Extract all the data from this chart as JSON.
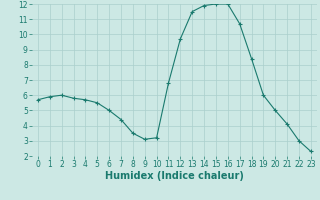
{
  "x": [
    0,
    1,
    2,
    3,
    4,
    5,
    6,
    7,
    8,
    9,
    10,
    11,
    12,
    13,
    14,
    15,
    16,
    17,
    18,
    19,
    20,
    21,
    22,
    23
  ],
  "y": [
    5.7,
    5.9,
    6.0,
    5.8,
    5.7,
    5.5,
    5.0,
    4.4,
    3.5,
    3.1,
    3.2,
    6.8,
    9.7,
    11.5,
    11.9,
    12.0,
    12.0,
    10.7,
    8.4,
    6.0,
    5.0,
    4.1,
    3.0,
    2.3
  ],
  "xlabel": "Humidex (Indice chaleur)",
  "ylim": [
    2,
    12
  ],
  "xlim_min": -0.5,
  "xlim_max": 23.5,
  "yticks": [
    2,
    3,
    4,
    5,
    6,
    7,
    8,
    9,
    10,
    11,
    12
  ],
  "xticks": [
    0,
    1,
    2,
    3,
    4,
    5,
    6,
    7,
    8,
    9,
    10,
    11,
    12,
    13,
    14,
    15,
    16,
    17,
    18,
    19,
    20,
    21,
    22,
    23
  ],
  "line_color": "#1a7a6e",
  "marker": "+",
  "marker_size": 3,
  "marker_linewidth": 0.8,
  "line_width": 0.8,
  "bg_color": "#cce8e4",
  "grid_color": "#aacfcc",
  "tick_label_fontsize": 5.5,
  "xlabel_fontsize": 7.0,
  "xlabel_fontweight": "bold"
}
